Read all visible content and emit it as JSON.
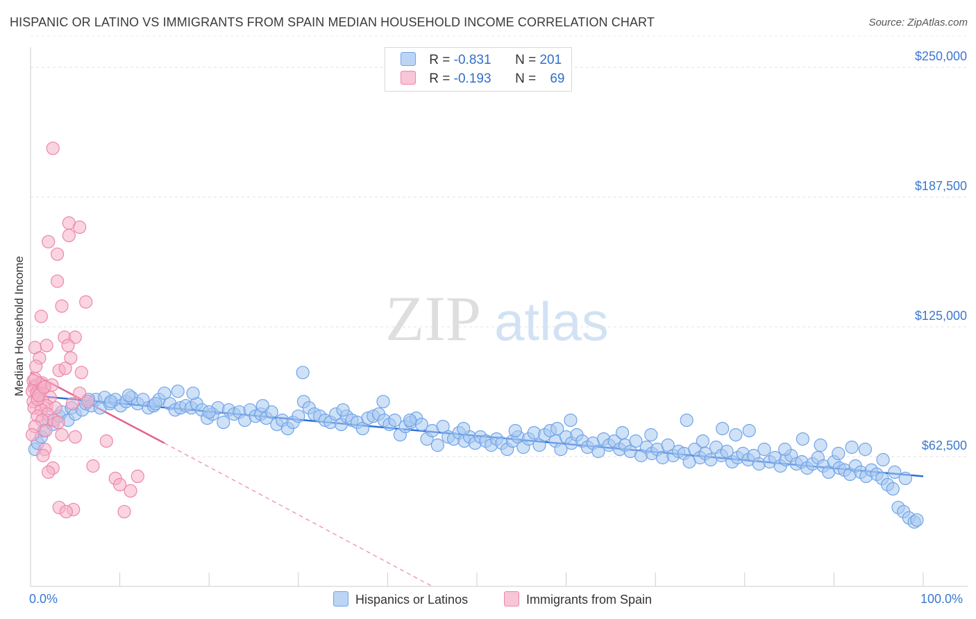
{
  "header": {
    "title": "HISPANIC OR LATINO VS IMMIGRANTS FROM SPAIN MEDIAN HOUSEHOLD INCOME CORRELATION CHART",
    "source": "Source: ZipAtlas.com"
  },
  "watermark": {
    "part1": "ZIP",
    "part2": "atlas"
  },
  "legend": {
    "rows": [
      {
        "r_label": "R = ",
        "r_value": "-0.831",
        "n_label": "N = ",
        "n_value": "201",
        "color": "#a8c8f0"
      },
      {
        "r_label": "R = ",
        "r_value": "-0.193",
        "n_label": "N = ",
        "n_value": "69",
        "color": "#f5b0c8"
      }
    ]
  },
  "bottom_legend": {
    "items": [
      {
        "label": "Hispanics or Latinos",
        "color": "#a8c8f0"
      },
      {
        "label": "Immigrants from Spain",
        "color": "#f5b0c8"
      }
    ]
  },
  "chart_data": {
    "type": "scatter",
    "title": "HISPANIC OR LATINO VS IMMIGRANTS FROM SPAIN MEDIAN HOUSEHOLD INCOME CORRELATION CHART",
    "xlabel": "",
    "ylabel": "Median Household Income",
    "xlim": [
      0,
      100
    ],
    "ylim": [
      0,
      265000
    ],
    "x_tick_labels": [
      "0.0%",
      "100.0%"
    ],
    "y_ticks": [
      62500,
      125000,
      187500,
      250000
    ],
    "y_tick_labels": [
      "$62,500",
      "$125,000",
      "$187,500",
      "$250,000"
    ],
    "grid": "horizontal dashed",
    "series": [
      {
        "name": "Hispanics or Latinos",
        "color": "#6fa3e8",
        "fill": "#a8c8f0",
        "trend": {
          "x": [
            0,
            100
          ],
          "y": [
            92000,
            53000
          ]
        },
        "points": [
          [
            0.5,
            66000
          ],
          [
            0.8,
            69000
          ],
          [
            1.2,
            72000
          ],
          [
            1.5,
            75000
          ],
          [
            2.0,
            80000
          ],
          [
            2.5,
            78000
          ],
          [
            3.2,
            82000
          ],
          [
            3.5,
            84000
          ],
          [
            4.2,
            80000
          ],
          [
            4.6,
            86000
          ],
          [
            5.0,
            83000
          ],
          [
            5.8,
            85000
          ],
          [
            6.2,
            88000
          ],
          [
            6.8,
            87000
          ],
          [
            7.3,
            90000
          ],
          [
            7.8,
            86000
          ],
          [
            8.3,
            91000
          ],
          [
            8.9,
            88000
          ],
          [
            9.5,
            90000
          ],
          [
            10.1,
            87000
          ],
          [
            10.7,
            89000
          ],
          [
            11.3,
            91000
          ],
          [
            12.0,
            88000
          ],
          [
            12.6,
            90000
          ],
          [
            13.2,
            86000
          ],
          [
            13.8,
            87000
          ],
          [
            14.4,
            90000
          ],
          [
            15.0,
            93000
          ],
          [
            15.6,
            88000
          ],
          [
            16.2,
            85000
          ],
          [
            16.8,
            86000
          ],
          [
            17.4,
            87000
          ],
          [
            18.0,
            86000
          ],
          [
            18.6,
            88000
          ],
          [
            19.2,
            85000
          ],
          [
            19.8,
            81000
          ],
          [
            20.4,
            83000
          ],
          [
            21.0,
            86000
          ],
          [
            21.6,
            79000
          ],
          [
            22.2,
            85000
          ],
          [
            22.8,
            83000
          ],
          [
            23.4,
            84000
          ],
          [
            24.0,
            80000
          ],
          [
            24.6,
            85000
          ],
          [
            25.2,
            82000
          ],
          [
            25.8,
            83000
          ],
          [
            26.4,
            81000
          ],
          [
            27.0,
            84000
          ],
          [
            27.6,
            78000
          ],
          [
            28.2,
            80000
          ],
          [
            28.8,
            76000
          ],
          [
            29.4,
            79000
          ],
          [
            30.0,
            82000
          ],
          [
            30.6,
            89000
          ],
          [
            31.2,
            86000
          ],
          [
            31.8,
            83000
          ],
          [
            32.4,
            82000
          ],
          [
            33.0,
            80000
          ],
          [
            33.6,
            79000
          ],
          [
            34.2,
            83000
          ],
          [
            34.8,
            78000
          ],
          [
            35.4,
            82000
          ],
          [
            36.0,
            80000
          ],
          [
            36.6,
            79000
          ],
          [
            37.2,
            76000
          ],
          [
            37.8,
            81000
          ],
          [
            38.4,
            82000
          ],
          [
            39.0,
            83000
          ],
          [
            39.6,
            80000
          ],
          [
            40.2,
            78000
          ],
          [
            40.8,
            80000
          ],
          [
            41.4,
            73000
          ],
          [
            42.0,
            77000
          ],
          [
            42.6,
            79000
          ],
          [
            43.2,
            81000
          ],
          [
            43.8,
            78000
          ],
          [
            44.4,
            71000
          ],
          [
            45.0,
            75000
          ],
          [
            45.6,
            68000
          ],
          [
            46.2,
            77000
          ],
          [
            46.8,
            72000
          ],
          [
            47.4,
            71000
          ],
          [
            48.0,
            74000
          ],
          [
            48.6,
            70000
          ],
          [
            49.2,
            72000
          ],
          [
            49.8,
            69000
          ],
          [
            50.4,
            72000
          ],
          [
            51.0,
            70000
          ],
          [
            51.6,
            68000
          ],
          [
            52.2,
            71000
          ],
          [
            52.8,
            69000
          ],
          [
            53.4,
            66000
          ],
          [
            54.0,
            70000
          ],
          [
            54.6,
            72000
          ],
          [
            55.2,
            67000
          ],
          [
            55.8,
            71000
          ],
          [
            56.4,
            74000
          ],
          [
            57.0,
            68000
          ],
          [
            57.6,
            73000
          ],
          [
            58.2,
            75000
          ],
          [
            58.8,
            70000
          ],
          [
            59.4,
            66000
          ],
          [
            60.0,
            72000
          ],
          [
            60.6,
            69000
          ],
          [
            61.2,
            73000
          ],
          [
            61.8,
            70000
          ],
          [
            62.4,
            67000
          ],
          [
            63.0,
            69000
          ],
          [
            63.6,
            65000
          ],
          [
            64.2,
            71000
          ],
          [
            64.8,
            68000
          ],
          [
            65.4,
            70000
          ],
          [
            66.0,
            66000
          ],
          [
            66.6,
            68000
          ],
          [
            67.2,
            65000
          ],
          [
            67.8,
            70000
          ],
          [
            68.4,
            63000
          ],
          [
            69.0,
            67000
          ],
          [
            69.6,
            64000
          ],
          [
            70.2,
            66000
          ],
          [
            70.8,
            62000
          ],
          [
            71.4,
            68000
          ],
          [
            72.0,
            63000
          ],
          [
            72.6,
            65000
          ],
          [
            73.2,
            64000
          ],
          [
            73.8,
            60000
          ],
          [
            74.4,
            66000
          ],
          [
            75.0,
            62000
          ],
          [
            75.6,
            64000
          ],
          [
            76.2,
            61000
          ],
          [
            76.8,
            67000
          ],
          [
            77.4,
            63000
          ],
          [
            78.0,
            65000
          ],
          [
            78.6,
            60000
          ],
          [
            79.2,
            62000
          ],
          [
            79.8,
            64000
          ],
          [
            80.4,
            61000
          ],
          [
            81.0,
            63000
          ],
          [
            81.6,
            59000
          ],
          [
            82.2,
            66000
          ],
          [
            82.8,
            60000
          ],
          [
            83.4,
            62000
          ],
          [
            84.0,
            58000
          ],
          [
            84.6,
            61000
          ],
          [
            85.2,
            63000
          ],
          [
            85.8,
            59000
          ],
          [
            86.4,
            60000
          ],
          [
            87.0,
            57000
          ],
          [
            87.6,
            59000
          ],
          [
            88.2,
            62000
          ],
          [
            88.8,
            58000
          ],
          [
            89.4,
            55000
          ],
          [
            90.0,
            60000
          ],
          [
            90.6,
            57000
          ],
          [
            91.2,
            56000
          ],
          [
            91.8,
            54000
          ],
          [
            92.4,
            58000
          ],
          [
            93.0,
            55000
          ],
          [
            93.6,
            53000
          ],
          [
            94.2,
            56000
          ],
          [
            94.8,
            54000
          ],
          [
            95.4,
            52000
          ],
          [
            96.0,
            49000
          ],
          [
            96.6,
            47000
          ],
          [
            97.2,
            38000
          ],
          [
            97.8,
            36000
          ],
          [
            98.4,
            33000
          ],
          [
            99.0,
            31000
          ],
          [
            99.3,
            32000
          ],
          [
            30.5,
            103000
          ],
          [
            39.5,
            89000
          ],
          [
            60.5,
            80000
          ],
          [
            73.5,
            80000
          ],
          [
            77.5,
            76000
          ],
          [
            80.5,
            75000
          ],
          [
            86.5,
            71000
          ],
          [
            88.5,
            68000
          ],
          [
            92.0,
            67000
          ],
          [
            93.5,
            66000
          ],
          [
            95.5,
            61000
          ],
          [
            6.5,
            90000
          ],
          [
            16.5,
            94000
          ],
          [
            18.2,
            93000
          ],
          [
            11.0,
            92000
          ],
          [
            9.0,
            89000
          ],
          [
            14.0,
            88000
          ],
          [
            20.0,
            84000
          ],
          [
            26.0,
            87000
          ],
          [
            35.0,
            85000
          ],
          [
            42.5,
            80000
          ],
          [
            48.5,
            76000
          ],
          [
            54.3,
            75000
          ],
          [
            59.0,
            76000
          ],
          [
            66.3,
            74000
          ],
          [
            69.5,
            73000
          ],
          [
            75.3,
            70000
          ],
          [
            79.0,
            73000
          ],
          [
            84.5,
            66000
          ],
          [
            90.5,
            64000
          ],
          [
            96.8,
            55000
          ],
          [
            98.0,
            52000
          ]
        ]
      },
      {
        "name": "Immigrants from Spain",
        "color": "#ec86a8",
        "fill": "#f5b0c8",
        "trend": {
          "x": [
            0,
            15
          ],
          "y": [
            103000,
            69000
          ]
        },
        "trend_extension": {
          "x": [
            15,
            45
          ],
          "y": [
            69000,
            0
          ]
        },
        "points": [
          [
            2.5,
            211000
          ],
          [
            4.3,
            175000
          ],
          [
            5.5,
            173000
          ],
          [
            4.3,
            169000
          ],
          [
            2.0,
            166000
          ],
          [
            3.0,
            160000
          ],
          [
            3.0,
            147000
          ],
          [
            6.2,
            137000
          ],
          [
            3.5,
            135000
          ],
          [
            1.2,
            130000
          ],
          [
            1.8,
            116000
          ],
          [
            0.5,
            115000
          ],
          [
            3.8,
            120000
          ],
          [
            5.0,
            120000
          ],
          [
            4.2,
            116000
          ],
          [
            1.0,
            110000
          ],
          [
            0.6,
            106000
          ],
          [
            4.5,
            110000
          ],
          [
            3.2,
            104000
          ],
          [
            5.7,
            103000
          ],
          [
            0.3,
            99000
          ],
          [
            0.6,
            97000
          ],
          [
            1.3,
            98000
          ],
          [
            0.4,
            96000
          ],
          [
            0.9,
            95000
          ],
          [
            1.6,
            96000
          ],
          [
            0.2,
            94000
          ],
          [
            0.7,
            93000
          ],
          [
            1.1,
            93000
          ],
          [
            5.5,
            93000
          ],
          [
            2.2,
            91000
          ],
          [
            0.3,
            89000
          ],
          [
            1.4,
            89000
          ],
          [
            4.7,
            88000
          ],
          [
            6.4,
            89000
          ],
          [
            1.8,
            87000
          ],
          [
            0.4,
            86000
          ],
          [
            1.2,
            85000
          ],
          [
            2.8,
            86000
          ],
          [
            1.9,
            83000
          ],
          [
            0.8,
            82000
          ],
          [
            2.6,
            80000
          ],
          [
            1.3,
            80000
          ],
          [
            3.1,
            79000
          ],
          [
            0.5,
            77000
          ],
          [
            1.7,
            75000
          ],
          [
            0.2,
            73000
          ],
          [
            5.0,
            72000
          ],
          [
            3.5,
            73000
          ],
          [
            1.6,
            66000
          ],
          [
            8.5,
            70000
          ],
          [
            1.4,
            63000
          ],
          [
            7.0,
            58000
          ],
          [
            2.5,
            57000
          ],
          [
            2.0,
            55000
          ],
          [
            9.5,
            52000
          ],
          [
            12.0,
            53000
          ],
          [
            10.0,
            49000
          ],
          [
            11.2,
            46000
          ],
          [
            3.2,
            38000
          ],
          [
            4.8,
            37000
          ],
          [
            4.0,
            36000
          ],
          [
            10.5,
            36000
          ],
          [
            0.8,
            90000
          ],
          [
            0.9,
            92000
          ],
          [
            1.5,
            96000
          ],
          [
            2.4,
            97000
          ],
          [
            0.5,
            100000
          ],
          [
            3.9,
            105000
          ]
        ]
      }
    ]
  }
}
